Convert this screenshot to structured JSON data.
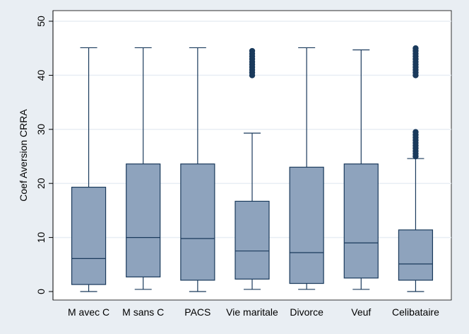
{
  "chart_data": {
    "type": "box",
    "categories": [
      "M avec C",
      "M sans C",
      "PACS",
      "Vie maritale",
      "Divorce",
      "Veuf",
      "Celibataire"
    ],
    "ylabel": "Coef Aversion CRRA",
    "xlabel": "",
    "ylim": [
      0,
      50
    ],
    "yticks": [
      0,
      10,
      20,
      30,
      40,
      50
    ],
    "grid": "horizontal",
    "legend": "none",
    "boxes": [
      {
        "min": 0.0,
        "q1": 1.3,
        "median": 6.1,
        "q3": 19.3,
        "max": 45.1,
        "outliers": []
      },
      {
        "min": 0.4,
        "q1": 2.7,
        "median": 10.0,
        "q3": 23.6,
        "max": 45.1,
        "outliers": []
      },
      {
        "min": 0.0,
        "q1": 2.1,
        "median": 9.8,
        "q3": 23.6,
        "max": 45.1,
        "outliers": []
      },
      {
        "min": 0.4,
        "q1": 2.3,
        "median": 7.5,
        "q3": 16.7,
        "max": 29.3,
        "outliers": [
          40.0,
          40.5,
          41.0,
          41.5,
          42.0,
          42.5,
          43.0,
          43.5,
          44.0,
          44.5
        ]
      },
      {
        "min": 0.4,
        "q1": 1.5,
        "median": 7.2,
        "q3": 23.0,
        "max": 45.1,
        "outliers": []
      },
      {
        "min": 0.4,
        "q1": 2.5,
        "median": 9.0,
        "q3": 23.6,
        "max": 44.7,
        "outliers": []
      },
      {
        "min": 0.0,
        "q1": 2.1,
        "median": 5.1,
        "q3": 11.4,
        "max": 24.6,
        "outliers": [
          25.0,
          25.5,
          26.0,
          26.5,
          27.0,
          27.5,
          28.0,
          28.5,
          29.0,
          29.5,
          40.0,
          40.5,
          41.0,
          41.5,
          42.0,
          42.5,
          43.0,
          43.5,
          44.0,
          44.5,
          45.0
        ]
      }
    ],
    "colors": {
      "box_fill": "#8ea3bd",
      "box_stroke": "#1a3a5c",
      "outlier": "#1a3a5c",
      "grid": "#e8eef4",
      "plot_bg": "#ffffff",
      "outer_bg": "#e9eef3"
    }
  }
}
